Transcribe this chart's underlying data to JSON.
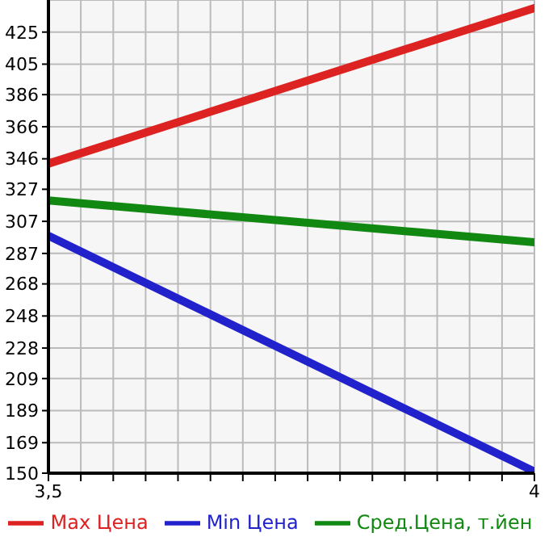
{
  "chart_data": {
    "type": "line",
    "x": [
      3.5,
      4
    ],
    "series": [
      {
        "name": "Max Цена",
        "color": "#dd2222",
        "values": [
          343,
          440
        ]
      },
      {
        "name": "Min Цена",
        "color": "#2222cc",
        "values": [
          298,
          151
        ]
      },
      {
        "name": "Сред.Цена, т.йен",
        "color": "#118811",
        "values": [
          320,
          294
        ]
      }
    ],
    "xlim": [
      3.5,
      4
    ],
    "xticks": [
      {
        "value": 3.5,
        "label": "3,5"
      },
      {
        "value": 3.5333,
        "label": null
      },
      {
        "value": 3.5667,
        "label": null
      },
      {
        "value": 3.6,
        "label": null
      },
      {
        "value": 3.6333,
        "label": null
      },
      {
        "value": 3.6667,
        "label": null
      },
      {
        "value": 3.7,
        "label": null
      },
      {
        "value": 3.7333,
        "label": null
      },
      {
        "value": 3.7667,
        "label": null
      },
      {
        "value": 3.8,
        "label": null
      },
      {
        "value": 3.8333,
        "label": null
      },
      {
        "value": 3.8667,
        "label": null
      },
      {
        "value": 3.9,
        "label": null
      },
      {
        "value": 3.9333,
        "label": null
      },
      {
        "value": 3.9667,
        "label": null
      },
      {
        "value": 4,
        "label": "4"
      }
    ],
    "ylim": [
      150,
      445
    ],
    "yticks": [
      150,
      169,
      189,
      209,
      228,
      248,
      268,
      287,
      307,
      327,
      346,
      366,
      386,
      405,
      425
    ],
    "grid": true,
    "legend": "bottom",
    "marker": "none",
    "line_style": "solid"
  }
}
